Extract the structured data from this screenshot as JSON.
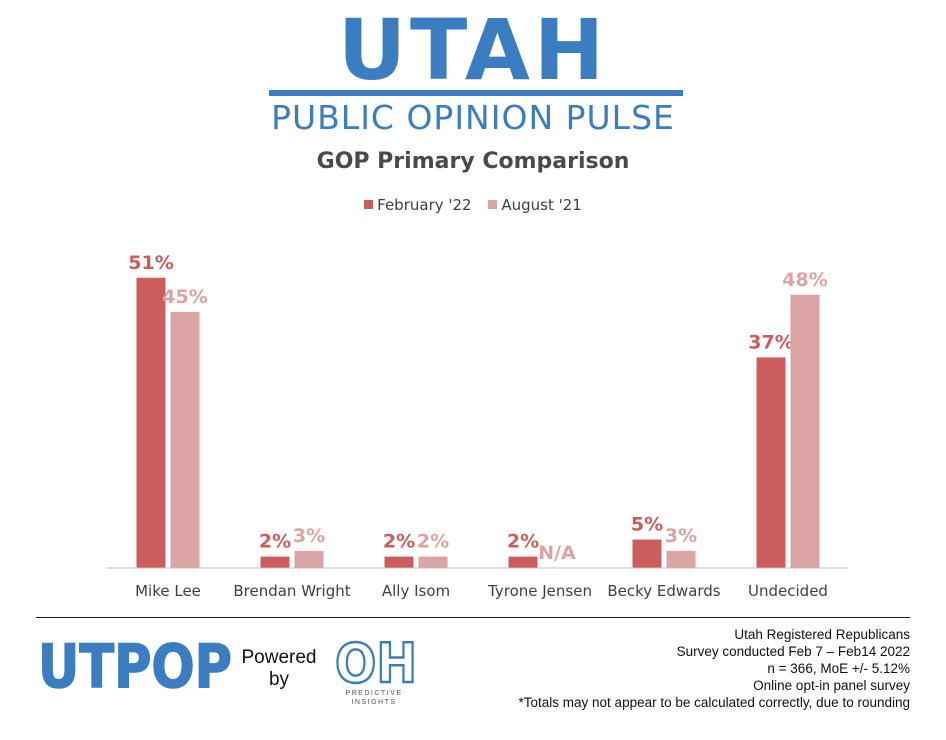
{
  "branding": {
    "title": "UTAH",
    "subtitle": "PUBLIC OPINION PULSE",
    "footer_logo": "UTPOP",
    "powered_by_line1": "Powered",
    "powered_by_line2": "by",
    "partner_mark": "OH",
    "partner_caption_line1": "PREDICTIVE",
    "partner_caption_line2": "INSIGHTS",
    "brand_color": "#3a7dc0"
  },
  "chart_data": {
    "type": "bar",
    "title": "GOP Primary Comparison",
    "categories": [
      "Mike Lee",
      "Brendan Wright",
      "Ally Isom",
      "Tyrone Jensen",
      "Becky Edwards",
      "Undecided"
    ],
    "series": [
      {
        "name": "February '22",
        "color": "#cd5c5c",
        "values": [
          51,
          2,
          2,
          2,
          5,
          37
        ],
        "labels": [
          "51%",
          "2%",
          "2%",
          "2%",
          "5%",
          "37%"
        ]
      },
      {
        "name": "August '21",
        "color": "#dba3a3",
        "values": [
          45,
          3,
          2,
          null,
          3,
          48
        ],
        "labels": [
          "45%",
          "3%",
          "2%",
          "N/A",
          "3%",
          "48%"
        ]
      }
    ],
    "ylim": [
      0,
      55
    ],
    "grid": false,
    "legend": "top-center"
  },
  "notes": [
    "Utah Registered Republicans",
    "Survey conducted Feb 7 – Feb14 2022",
    "n = 366, MoE +/- 5.12%",
    "Online opt-in panel survey",
    "*Totals may not appear to be calculated correctly, due to rounding"
  ]
}
